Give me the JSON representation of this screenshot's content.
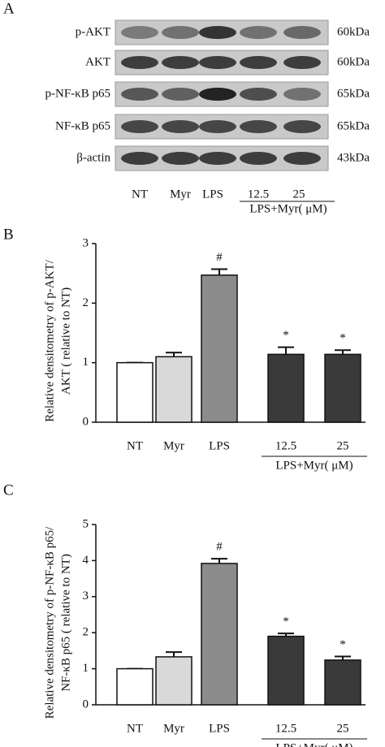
{
  "blot": {
    "label": "A",
    "rows": [
      {
        "name": "p-AKT",
        "size": "60kDa"
      },
      {
        "name": "AKT",
        "size": "60kDa"
      },
      {
        "name": "p-NF-κB p65",
        "size": "65kDa"
      },
      {
        "name": "NF-κB p65",
        "size": "65kDa"
      },
      {
        "name": "β-actin",
        "size": "43kDa"
      }
    ],
    "lanes": [
      "NT",
      "Myr",
      "LPS",
      "12.5",
      "25"
    ],
    "group_label": "LPS+Myr( μM)"
  },
  "chart_data": [
    {
      "type": "bar",
      "panel": "B",
      "y_label": [
        "Relative densitometry of p-AKT/",
        "AKT ( relative to NT)"
      ],
      "categories": [
        "NT",
        "Myr",
        "LPS",
        "12.5",
        "25"
      ],
      "group_label": "LPS+Myr( μM)",
      "values": [
        1.0,
        1.1,
        2.47,
        1.14,
        1.14
      ],
      "errors": [
        0,
        0.07,
        0.1,
        0.12,
        0.07
      ],
      "annotations": [
        null,
        null,
        "#",
        "*",
        "*"
      ],
      "colors": [
        "#ffffff",
        "#d9d9d9",
        "#8c8c8c",
        "#3a3a3a",
        "#3a3a3a"
      ],
      "ylim": [
        0,
        3
      ],
      "yticks": [
        0,
        1,
        2,
        3
      ]
    },
    {
      "type": "bar",
      "panel": "C",
      "y_label": [
        "Relative densitometry of p-NF-κB p65/",
        "NF-κB p65 ( relative to NT)"
      ],
      "categories": [
        "NT",
        "Myr",
        "LPS",
        "12.5",
        "25"
      ],
      "group_label": "LPS+Myr( μM)",
      "values": [
        1.0,
        1.33,
        3.92,
        1.9,
        1.24
      ],
      "errors": [
        0,
        0.13,
        0.13,
        0.08,
        0.1
      ],
      "annotations": [
        null,
        null,
        "#",
        "*",
        "*"
      ],
      "colors": [
        "#ffffff",
        "#d9d9d9",
        "#8c8c8c",
        "#3a3a3a",
        "#3a3a3a"
      ],
      "ylim": [
        0,
        5
      ],
      "yticks": [
        0,
        1,
        2,
        3,
        4,
        5
      ]
    }
  ]
}
